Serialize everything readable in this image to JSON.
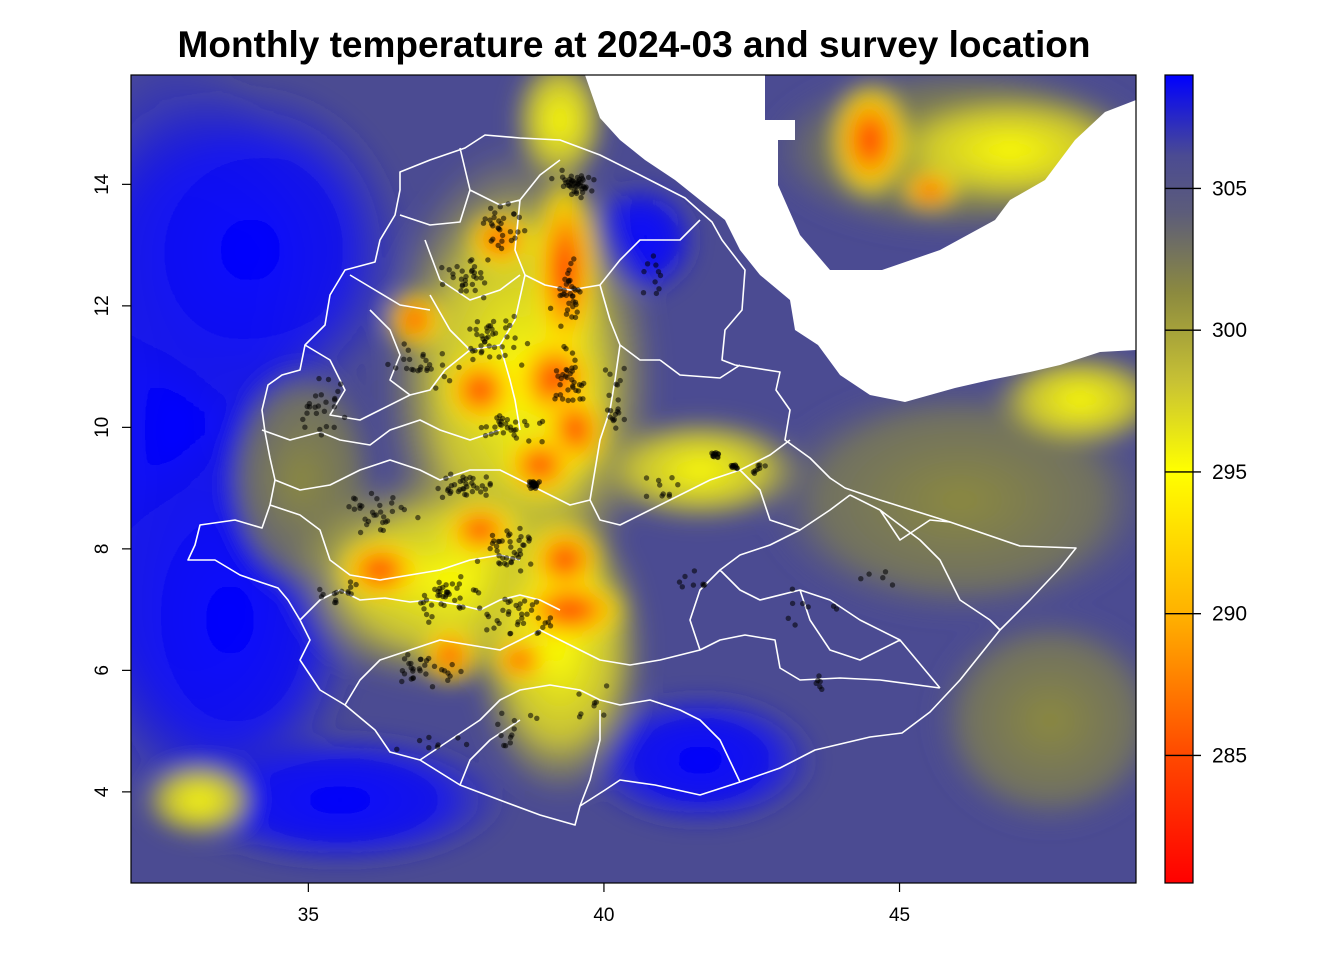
{
  "title": "Monthly temperature at 2024-03 and survey location",
  "map": {
    "x_ticks": [
      "35",
      "40",
      "45"
    ],
    "y_ticks": [
      "4",
      "6",
      "8",
      "10",
      "12",
      "14"
    ],
    "xlim": [
      32,
      49
    ],
    "ylim": [
      2.5,
      15.8
    ]
  },
  "colorbar": {
    "ticks": [
      "305",
      "300",
      "295",
      "290",
      "285"
    ],
    "range": [
      280.5,
      309
    ]
  },
  "colors": {
    "hot_cold_low": "#ff0000",
    "mid": "#ffff00",
    "olive": "#8c8a3f",
    "slate": "#4b4b92",
    "high": "#0000ff",
    "boundary": "#ffffff",
    "survey_point": "#000000"
  }
}
